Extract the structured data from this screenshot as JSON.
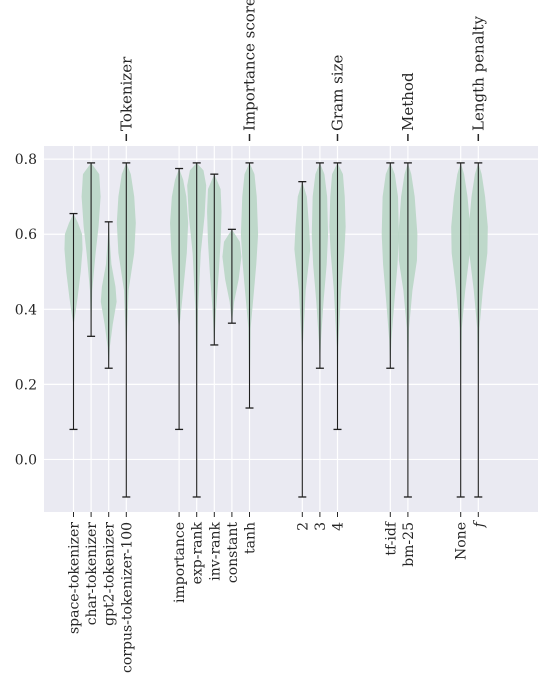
{
  "chart_data": {
    "type": "violin",
    "title": "",
    "xlabel": "",
    "ylabel": "",
    "ylim": [
      -0.14,
      0.835
    ],
    "yticks": [
      0.0,
      0.2,
      0.4,
      0.6,
      0.8
    ],
    "ytick_labels": [
      "0.0",
      "0.2",
      "0.4",
      "0.6",
      "0.8"
    ],
    "grid": true,
    "colors": {
      "background": "#eaeaf2",
      "grid": "#ffffff",
      "violin": "#b9d6c5",
      "whisker": "#1f1f1f",
      "text": "#262626"
    },
    "groups": [
      {
        "name": "Tokenizer",
        "categories": [
          {
            "label": "space-tokenizer",
            "min": 0.08,
            "max": 0.655,
            "profile": [
              [
                0.08,
                0
              ],
              [
                0.36,
                0.01
              ],
              [
                0.43,
                0.18
              ],
              [
                0.5,
                0.32
              ],
              [
                0.56,
                0.4
              ],
              [
                0.6,
                0.38
              ],
              [
                0.63,
                0.2
              ],
              [
                0.655,
                0
              ]
            ]
          },
          {
            "label": "char-tokenizer",
            "min": 0.328,
            "max": 0.79,
            "profile": [
              [
                0.328,
                0
              ],
              [
                0.45,
                0.05
              ],
              [
                0.55,
                0.2
              ],
              [
                0.62,
                0.33
              ],
              [
                0.7,
                0.42
              ],
              [
                0.76,
                0.36
              ],
              [
                0.79,
                0
              ]
            ]
          },
          {
            "label": "gpt2-tokenizer",
            "min": 0.243,
            "max": 0.633,
            "profile": [
              [
                0.243,
                0
              ],
              [
                0.3,
                0.05
              ],
              [
                0.36,
                0.18
              ],
              [
                0.42,
                0.35
              ],
              [
                0.46,
                0.3
              ],
              [
                0.52,
                0.12
              ],
              [
                0.58,
                0.05
              ],
              [
                0.633,
                0
              ]
            ]
          },
          {
            "label": "corpus-tokenizer-100",
            "min": -0.1,
            "max": 0.79,
            "profile": [
              [
                -0.1,
                0
              ],
              [
                0.3,
                0.01
              ],
              [
                0.45,
                0.1
              ],
              [
                0.55,
                0.35
              ],
              [
                0.63,
                0.42
              ],
              [
                0.7,
                0.35
              ],
              [
                0.76,
                0.2
              ],
              [
                0.79,
                0
              ]
            ]
          }
        ]
      },
      {
        "name": "Importance score",
        "categories": [
          {
            "label": "importance",
            "min": 0.08,
            "max": 0.775,
            "profile": [
              [
                0.08,
                0
              ],
              [
                0.35,
                0.01
              ],
              [
                0.45,
                0.18
              ],
              [
                0.55,
                0.34
              ],
              [
                0.63,
                0.4
              ],
              [
                0.7,
                0.32
              ],
              [
                0.745,
                0.18
              ],
              [
                0.775,
                0
              ]
            ]
          },
          {
            "label": "exp-rank",
            "min": -0.1,
            "max": 0.79,
            "profile": [
              [
                -0.1,
                0
              ],
              [
                0.2,
                0.01
              ],
              [
                0.4,
                0.06
              ],
              [
                0.55,
                0.18
              ],
              [
                0.65,
                0.35
              ],
              [
                0.73,
                0.42
              ],
              [
                0.77,
                0.3
              ],
              [
                0.79,
                0
              ]
            ]
          },
          {
            "label": "inv-rank",
            "min": 0.305,
            "max": 0.76,
            "profile": [
              [
                0.305,
                0
              ],
              [
                0.4,
                0.08
              ],
              [
                0.5,
                0.2
              ],
              [
                0.58,
                0.28
              ],
              [
                0.66,
                0.32
              ],
              [
                0.72,
                0.28
              ],
              [
                0.76,
                0
              ]
            ]
          },
          {
            "label": "constant",
            "min": 0.363,
            "max": 0.613,
            "profile": [
              [
                0.363,
                0
              ],
              [
                0.42,
                0.1
              ],
              [
                0.48,
                0.3
              ],
              [
                0.54,
                0.42
              ],
              [
                0.58,
                0.35
              ],
              [
                0.613,
                0
              ]
            ]
          },
          {
            "label": "tanh",
            "min": 0.137,
            "max": 0.79,
            "profile": [
              [
                0.137,
                0
              ],
              [
                0.35,
                0.05
              ],
              [
                0.45,
                0.2
              ],
              [
                0.52,
                0.3
              ],
              [
                0.6,
                0.38
              ],
              [
                0.7,
                0.32
              ],
              [
                0.76,
                0.22
              ],
              [
                0.79,
                0
              ]
            ]
          }
        ]
      },
      {
        "name": "Gram size",
        "categories": [
          {
            "label": "2",
            "min": -0.1,
            "max": 0.74,
            "profile": [
              [
                -0.1,
                0
              ],
              [
                0.3,
                0.02
              ],
              [
                0.45,
                0.15
              ],
              [
                0.52,
                0.28
              ],
              [
                0.56,
                0.35
              ],
              [
                0.62,
                0.3
              ],
              [
                0.7,
                0.2
              ],
              [
                0.74,
                0
              ]
            ]
          },
          {
            "label": "3",
            "min": 0.243,
            "max": 0.79,
            "profile": [
              [
                0.243,
                0
              ],
              [
                0.32,
                0.05
              ],
              [
                0.42,
                0.16
              ],
              [
                0.52,
                0.3
              ],
              [
                0.6,
                0.36
              ],
              [
                0.7,
                0.32
              ],
              [
                0.76,
                0.2
              ],
              [
                0.79,
                0
              ]
            ]
          },
          {
            "label": "4",
            "min": 0.08,
            "max": 0.79,
            "profile": [
              [
                0.08,
                0
              ],
              [
                0.3,
                0.03
              ],
              [
                0.45,
                0.16
              ],
              [
                0.55,
                0.3
              ],
              [
                0.62,
                0.36
              ],
              [
                0.7,
                0.32
              ],
              [
                0.76,
                0.24
              ],
              [
                0.79,
                0
              ]
            ]
          }
        ]
      },
      {
        "name": "Method",
        "categories": [
          {
            "label": "tf-idf",
            "min": 0.243,
            "max": 0.79,
            "profile": [
              [
                0.243,
                0
              ],
              [
                0.32,
                0.05
              ],
              [
                0.42,
                0.18
              ],
              [
                0.52,
                0.32
              ],
              [
                0.6,
                0.38
              ],
              [
                0.7,
                0.34
              ],
              [
                0.76,
                0.2
              ],
              [
                0.79,
                0
              ]
            ]
          },
          {
            "label": "bm-25",
            "min": -0.1,
            "max": 0.79,
            "profile": [
              [
                -0.1,
                0
              ],
              [
                0.2,
                0.01
              ],
              [
                0.35,
                0.05
              ],
              [
                0.45,
                0.2
              ],
              [
                0.53,
                0.4
              ],
              [
                0.6,
                0.42
              ],
              [
                0.7,
                0.3
              ],
              [
                0.76,
                0.15
              ],
              [
                0.79,
                0
              ]
            ]
          }
        ]
      },
      {
        "name": "Length penalty",
        "categories": [
          {
            "label": "None",
            "min": -0.1,
            "max": 0.79,
            "profile": [
              [
                -0.1,
                0
              ],
              [
                0.2,
                0.01
              ],
              [
                0.35,
                0.05
              ],
              [
                0.45,
                0.2
              ],
              [
                0.55,
                0.4
              ],
              [
                0.62,
                0.42
              ],
              [
                0.7,
                0.3
              ],
              [
                0.76,
                0.15
              ],
              [
                0.79,
                0
              ]
            ]
          },
          {
            "label": "f",
            "min": -0.1,
            "max": 0.79,
            "profile": [
              [
                -0.1,
                0
              ],
              [
                0.2,
                0.01
              ],
              [
                0.35,
                0.05
              ],
              [
                0.45,
                0.2
              ],
              [
                0.55,
                0.4
              ],
              [
                0.62,
                0.42
              ],
              [
                0.7,
                0.3
              ],
              [
                0.76,
                0.15
              ],
              [
                0.79,
                0
              ]
            ]
          }
        ]
      }
    ]
  }
}
